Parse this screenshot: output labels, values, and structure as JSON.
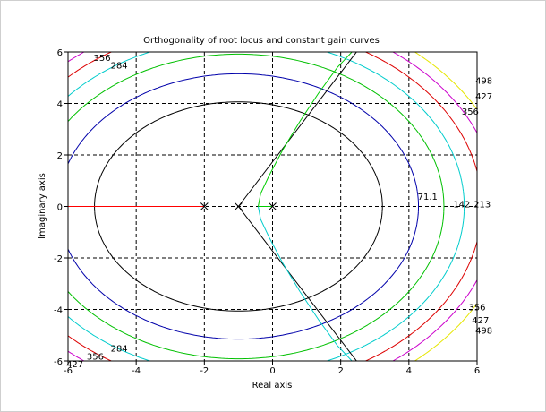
{
  "chart_data": {
    "type": "line",
    "title": "Orthogonality of root locus and constant gain curves",
    "xlabel": "Real axis",
    "ylabel": "Imaginary axis",
    "xlim": [
      -6,
      6
    ],
    "ylim": [
      -6,
      6
    ],
    "xticks": [
      "-6",
      "-4",
      "-2",
      "0",
      "2",
      "4",
      "6"
    ],
    "yticks": [
      "-6",
      "-4",
      "-2",
      "0",
      "2",
      "4",
      "6"
    ],
    "grid": true,
    "poles": [
      -2,
      -1,
      0
    ],
    "gain_curves": [
      {
        "level": 71.1,
        "label": "71.1",
        "color": "#000000"
      },
      {
        "level": 142,
        "label": "142",
        "color": "#0000aa"
      },
      {
        "level": 213,
        "label": "213",
        "color": "#00c000"
      },
      {
        "level": 284,
        "label": "284",
        "color": "#00cccc"
      },
      {
        "level": 356,
        "label": "356",
        "color": "#dd0000"
      },
      {
        "level": 427,
        "label": "427",
        "color": "#cc00cc"
      },
      {
        "level": 498,
        "label": "498",
        "color": "#e6e600"
      }
    ],
    "level_labels": [
      {
        "text": "71.1",
        "x": 4.55,
        "y": 0.4
      },
      {
        "text": "142",
        "x": 5.55,
        "y": 0.1
      },
      {
        "text": "213",
        "x": 6.15,
        "y": 0.1
      },
      {
        "text": "356",
        "x": -5.0,
        "y": 5.8
      },
      {
        "text": "284",
        "x": -4.5,
        "y": 5.5
      },
      {
        "text": "498",
        "x": 6.2,
        "y": 4.9
      },
      {
        "text": "427",
        "x": 6.2,
        "y": 4.3
      },
      {
        "text": "356",
        "x": 5.8,
        "y": 3.7
      },
      {
        "text": "356",
        "x": 6.0,
        "y": -3.9
      },
      {
        "text": "427",
        "x": 6.1,
        "y": -4.4
      },
      {
        "text": "498",
        "x": 6.2,
        "y": -4.8
      },
      {
        "text": "284",
        "x": -4.5,
        "y": -5.5
      },
      {
        "text": "356",
        "x": -5.2,
        "y": -5.8
      },
      {
        "text": "427",
        "x": -5.8,
        "y": -6.1
      }
    ],
    "root_locus": [
      {
        "name": "branch-real",
        "color": "#ff0000",
        "points": [
          [
            -2,
            0
          ],
          [
            -6,
            0
          ]
        ]
      },
      {
        "name": "branch-asym-upper",
        "color": "#000000",
        "points": [
          [
            -1,
            0
          ],
          [
            2.55,
            6.15
          ]
        ]
      },
      {
        "name": "branch-asym-lower",
        "color": "#000000",
        "points": [
          [
            -1,
            0
          ],
          [
            2.55,
            -6.15
          ]
        ]
      },
      {
        "name": "branch-upper",
        "color": "#00cc00",
        "points": [
          [
            -0.42,
            0
          ],
          [
            -0.35,
            0.5
          ],
          [
            -0.1,
            1.2
          ],
          [
            0.3,
            2.2
          ],
          [
            0.8,
            3.3
          ],
          [
            1.35,
            4.4
          ],
          [
            1.9,
            5.4
          ],
          [
            2.4,
            6.1
          ]
        ]
      },
      {
        "name": "branch-lower",
        "color": "#00cccc",
        "points": [
          [
            -0.42,
            0
          ],
          [
            -0.35,
            -0.5
          ],
          [
            -0.1,
            -1.2
          ],
          [
            0.3,
            -2.2
          ],
          [
            0.8,
            -3.3
          ],
          [
            1.35,
            -4.4
          ],
          [
            1.9,
            -5.4
          ],
          [
            2.4,
            -6.1
          ]
        ]
      },
      {
        "name": "branch-segment",
        "color": "#00cc00",
        "points": [
          [
            0,
            0
          ],
          [
            -0.42,
            0
          ]
        ]
      }
    ]
  }
}
